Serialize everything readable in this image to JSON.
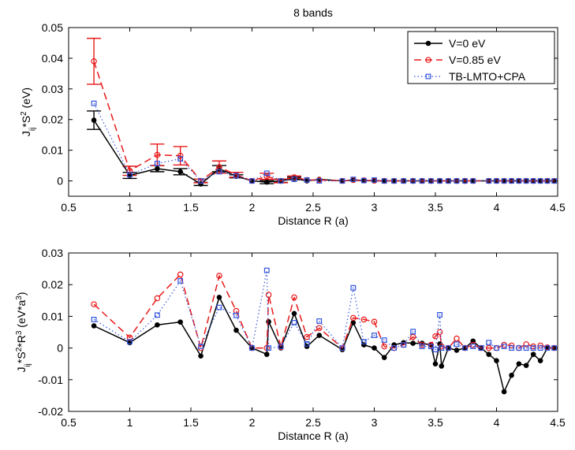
{
  "figure": {
    "title": "8 bands"
  },
  "chart_data": [
    {
      "type": "line",
      "title": "8 bands",
      "xlabel": "Distance R (a)",
      "ylabel": "J_ij*S^2 (eV)",
      "xlim": [
        0.5,
        4.5
      ],
      "ylim": [
        -0.005,
        0.05
      ],
      "x_ticks": [
        "0.5",
        "1",
        "1.5",
        "2",
        "2.5",
        "3",
        "3.5",
        "4",
        "4.5"
      ],
      "y_ticks": [
        "0",
        "0.01",
        "0.02",
        "0.03",
        "0.04",
        "0.05"
      ],
      "legend_position": "top-right",
      "x": [
        0.707,
        1.0,
        1.225,
        1.414,
        1.581,
        1.732,
        1.871,
        2.0,
        2.121,
        2.236,
        2.345,
        2.449,
        2.55,
        2.739,
        2.828,
        2.915,
        3.0,
        3.082,
        3.162,
        3.24,
        3.317,
        3.391,
        3.464,
        3.536,
        3.606,
        3.674,
        3.742,
        3.808,
        3.937,
        4.0,
        4.062,
        4.123,
        4.183,
        4.243,
        4.301,
        4.359,
        4.416,
        4.472
      ],
      "series": [
        {
          "name": "V=0 eV",
          "color": "#000000",
          "values": [
            0.0198,
            0.0018,
            0.004,
            0.003,
            -0.001,
            0.004,
            0.0015,
            0.0,
            -0.0004,
            0.0,
            0.0008,
            0.0,
            0.0005,
            0.0,
            0.0002,
            0.0001,
            0.0,
            0.0,
            0.0,
            0.0,
            0.0,
            0.0,
            0.0,
            0.0,
            0.0,
            0.0,
            0.0,
            0.0,
            0.0,
            0.0,
            0.0,
            0.0,
            0.0,
            0.0,
            0.0,
            0.0,
            0.0,
            0.0
          ]
        },
        {
          "name": "V=0.85 eV",
          "color": "#e8191a",
          "values": [
            0.039,
            0.0033,
            0.0085,
            0.0082,
            0.0,
            0.0045,
            0.002,
            0.0,
            0.0015,
            0.0,
            0.0012,
            0.0003,
            0.0003,
            0.0,
            0.0003,
            0.0002,
            0.0001,
            0.0,
            0.0,
            0.0,
            0.0,
            0.0,
            0.0,
            0.0,
            0.0,
            0.0,
            0.0,
            0.0,
            0.0,
            0.0,
            0.0,
            0.0,
            0.0,
            0.0,
            0.0,
            0.0,
            0.0,
            0.0
          ]
        },
        {
          "name": "TB-LMTO+CPA",
          "color": "#3355dd",
          "values": [
            0.0253,
            0.002,
            0.0057,
            0.0072,
            0.0,
            0.003,
            0.0017,
            0.0,
            0.0025,
            0.0,
            0.0005,
            0.0003,
            0.0,
            0.0,
            0.0005,
            0.0001,
            0.0003,
            0.0,
            0.0,
            0.0,
            0.0,
            0.0,
            0.0,
            0.0,
            0.0,
            0.0,
            0.0,
            0.0,
            0.0,
            0.0,
            0.0,
            0.0,
            0.0,
            0.0,
            0.0,
            0.0,
            0.0,
            0.0
          ]
        }
      ],
      "error_bars": [
        {
          "series": "V=0 eV",
          "x": [
            0.707,
            1.0,
            1.225,
            1.414,
            1.581,
            1.732,
            1.871,
            2.121,
            2.236,
            2.345
          ],
          "values": [
            0.0198,
            0.0018,
            0.004,
            0.003,
            -0.001,
            0.004,
            0.0015,
            -0.0004,
            0.0,
            0.0008
          ],
          "errors": [
            0.003,
            0.001,
            0.001,
            0.001,
            0.0005,
            0.001,
            0.0005,
            0.0005,
            0.0005,
            0.0004
          ]
        },
        {
          "series": "V=0.85 eV",
          "x": [
            0.707,
            1.0,
            1.225,
            1.414,
            1.581,
            1.732,
            1.871,
            2.121,
            2.236,
            2.345
          ],
          "values": [
            0.039,
            0.0033,
            0.0085,
            0.0082,
            0.0,
            0.0045,
            0.002,
            0.0015,
            0.0,
            0.0012
          ],
          "errors": [
            0.0075,
            0.0015,
            0.0035,
            0.003,
            0.0006,
            0.002,
            0.0008,
            0.001,
            0.0006,
            0.0004
          ]
        }
      ]
    },
    {
      "type": "line",
      "title": "",
      "xlabel": "Distance R (a)",
      "ylabel": "J_ij*S^2*R^3 (eV*a^3)",
      "xlim": [
        0.5,
        4.5
      ],
      "ylim": [
        -0.02,
        0.03
      ],
      "x_ticks": [
        "0.5",
        "1",
        "1.5",
        "2",
        "2.5",
        "3",
        "3.5",
        "4",
        "4.5"
      ],
      "y_ticks": [
        "-0.02",
        "-0.01",
        "0",
        "0.01",
        "0.02",
        "0.03"
      ],
      "series": [
        {
          "name": "V=0 eV",
          "color": "#000000",
          "x": [
            0.707,
            1.0,
            1.225,
            1.414,
            1.581,
            1.732,
            1.871,
            2.0,
            2.121,
            2.136,
            2.236,
            2.345,
            2.449,
            2.55,
            2.739,
            2.828,
            2.915,
            3.0,
            3.082,
            3.162,
            3.24,
            3.317,
            3.391,
            3.464,
            3.5,
            3.536,
            3.55,
            3.606,
            3.674,
            3.742,
            3.808,
            3.873,
            3.937,
            4.0,
            4.062,
            4.123,
            4.183,
            4.243,
            4.301,
            4.359,
            4.416,
            4.472
          ],
          "values": [
            0.007,
            0.0017,
            0.0073,
            0.0082,
            -0.0025,
            0.016,
            0.0056,
            0.0,
            -0.002,
            0.0083,
            0.0,
            0.0109,
            0.0005,
            0.004,
            -0.0005,
            0.008,
            0.001,
            0.0,
            -0.003,
            0.001,
            0.0017,
            0.0015,
            0.0015,
            0.001,
            -0.005,
            0.0013,
            -0.0057,
            0.0,
            -0.0007,
            0.0,
            0.0022,
            0.0,
            -0.002,
            -0.004,
            -0.0138,
            -0.0086,
            -0.005,
            -0.0055,
            -0.002,
            -0.004,
            0.0,
            0.0
          ]
        },
        {
          "name": "V=0.85 eV",
          "color": "#e8191a",
          "x": [
            0.707,
            1.0,
            1.225,
            1.414,
            1.581,
            1.732,
            1.871,
            2.0,
            2.121,
            2.136,
            2.236,
            2.345,
            2.449,
            2.55,
            2.739,
            2.828,
            2.915,
            3.0,
            3.082,
            3.162,
            3.24,
            3.317,
            3.391,
            3.464,
            3.5,
            3.536,
            3.55,
            3.606,
            3.674,
            3.742,
            3.808,
            3.873,
            3.937,
            4.0,
            4.062,
            4.123,
            4.183,
            4.243,
            4.301,
            4.359,
            4.416,
            4.472
          ],
          "values": [
            0.0138,
            0.0033,
            0.0157,
            0.0232,
            0.0,
            0.0228,
            0.0117,
            0.0,
            0.0,
            0.0168,
            0.0003,
            0.016,
            0.0035,
            0.0063,
            0.0,
            0.0095,
            0.009,
            0.0083,
            0.0005,
            0.0,
            0.001,
            0.0035,
            0.001,
            0.001,
            0.0037,
            0.005,
            0.0005,
            0.0,
            0.003,
            0.0,
            0.001,
            0.0,
            0.0,
            0.0,
            0.001,
            0.0008,
            0.0,
            0.0012,
            0.0005,
            0.0008,
            0.0002,
            0.0
          ]
        },
        {
          "name": "TB-LMTO+CPA",
          "color": "#3355dd",
          "x": [
            0.707,
            1.0,
            1.225,
            1.414,
            1.581,
            1.732,
            1.871,
            2.0,
            2.121,
            2.136,
            2.236,
            2.345,
            2.449,
            2.55,
            2.739,
            2.828,
            2.915,
            3.0,
            3.082,
            3.162,
            3.24,
            3.317,
            3.391,
            3.464,
            3.5,
            3.536,
            3.55,
            3.606,
            3.674,
            3.742,
            3.808,
            3.873,
            3.937,
            4.0,
            4.062,
            4.123,
            4.183,
            4.243,
            4.301,
            4.359,
            4.416,
            4.472
          ],
          "values": [
            0.009,
            0.002,
            0.0104,
            0.0212,
            0.0005,
            0.0128,
            0.0103,
            0.0,
            0.0245,
            0.0,
            0.0005,
            0.008,
            0.0013,
            0.0085,
            0.0,
            0.019,
            0.002,
            0.004,
            0.0025,
            0.0,
            0.001,
            0.0052,
            0.0005,
            0.0005,
            -0.0005,
            0.0105,
            0.0,
            0.0,
            0.0012,
            0.0,
            0.0005,
            0.0,
            0.0017,
            0.0,
            0.0005,
            0.0,
            0.0,
            0.0,
            0.0,
            0.0,
            0.0,
            0.0
          ]
        }
      ]
    }
  ]
}
